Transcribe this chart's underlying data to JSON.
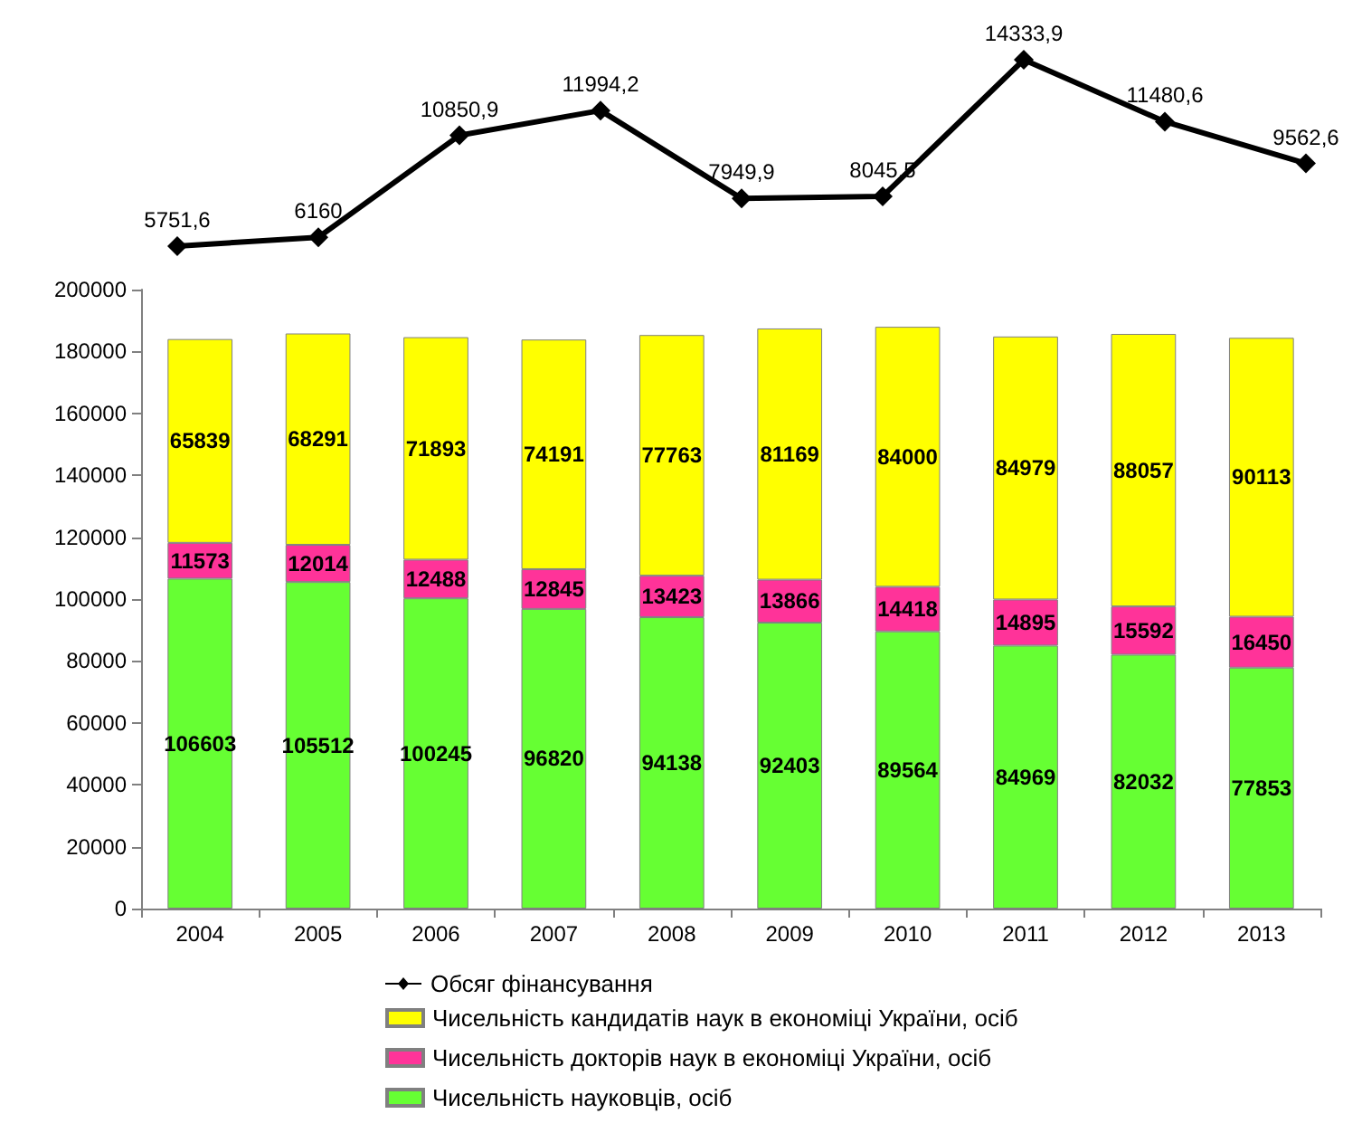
{
  "chart_data": [
    {
      "type": "line",
      "categories": [
        null,
        null,
        null,
        null,
        null,
        null,
        null,
        null,
        null
      ],
      "series": [
        {
          "name": "Обсяг фінансування",
          "color": "#000000",
          "values": [
            5751.6,
            6160,
            10850.9,
            11994.2,
            7949.9,
            8045.5,
            14333.9,
            11480.6,
            9562.6
          ],
          "value_labels": [
            "5751,6",
            "6160",
            "10850,9",
            "11994,2",
            "7949,9",
            "8045,5",
            "14333,9",
            "11480,6",
            "9562,6"
          ]
        }
      ],
      "marker": "diamond",
      "legend": "bottom",
      "tick_labels": false
    },
    {
      "type": "bar",
      "stacked": true,
      "categories": [
        "2004",
        "2005",
        "2006",
        "2007",
        "2008",
        "2009",
        "2010",
        "2011",
        "2012",
        "2013"
      ],
      "series": [
        {
          "name": "Чисельність науковців, осіб",
          "color": "#66ff33",
          "values": [
            106603,
            105512,
            100245,
            96820,
            94138,
            92403,
            89564,
            84969,
            82032,
            77853
          ]
        },
        {
          "name": "Чисельність докторів наук в економіці України, осіб",
          "color": "#ff3399",
          "values": [
            11573,
            12014,
            12488,
            12845,
            13423,
            13866,
            14418,
            14895,
            15592,
            16450
          ]
        },
        {
          "name": "Чисельність кандидатів наук в економіці України, осіб",
          "color": "#ffff00",
          "values": [
            65839,
            68291,
            71893,
            74191,
            77763,
            81169,
            84000,
            84979,
            88057,
            90113
          ]
        }
      ],
      "ylim": [
        0,
        200000
      ],
      "yticks": [
        0,
        20000,
        40000,
        60000,
        80000,
        100000,
        120000,
        140000,
        160000,
        180000,
        200000
      ],
      "data_labels": true,
      "grid": false,
      "legend": "bottom"
    }
  ]
}
